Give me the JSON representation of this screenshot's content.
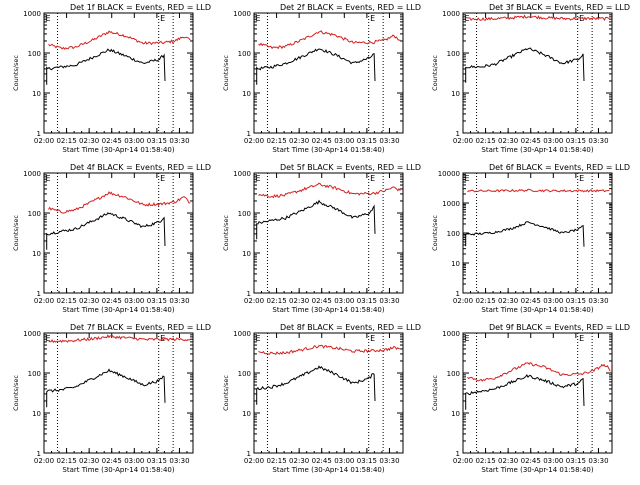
{
  "chart_data": [
    {
      "title": "Det 1f BLACK = Events, RED = LLD",
      "type": "line",
      "ylabel": "Counts/sec",
      "xlabel": "Start Time (30-Apr-14 01:58:40)",
      "yscale": "log",
      "ylim": [
        1,
        1000
      ],
      "x_ticks": [
        "02:00",
        "02:15",
        "02:30",
        "02:45",
        "03:00",
        "03:15",
        "03:30"
      ],
      "y_ticks": [
        "1",
        "10",
        "100",
        "1000"
      ],
      "series": [
        {
          "color": "#d42020",
          "x": [
            2.05,
            2.2,
            2.35,
            2.55,
            2.72,
            2.9,
            3.1,
            3.32,
            3.45,
            3.55,
            3.62
          ],
          "y": [
            160,
            130,
            140,
            215,
            340,
            270,
            175,
            180,
            200,
            260,
            210
          ]
        },
        {
          "color": "#000000",
          "x": [
            2.03,
            2.2,
            2.35,
            2.55,
            2.72,
            2.9,
            3.1,
            3.28,
            3.33,
            3.34
          ],
          "y": [
            40,
            45,
            50,
            80,
            120,
            85,
            55,
            70,
            90,
            20
          ]
        }
      ],
      "markers": {
        "vlines_x": [
          2.15,
          3.27,
          3.43
        ],
        "labels": [
          "E",
          "E"
        ]
      }
    },
    {
      "title": "Det 2f BLACK = Events, RED = LLD",
      "type": "line",
      "ylabel": "Counts/sec",
      "xlabel": "Start Time (30-Apr-14 01:58:40)",
      "yscale": "log",
      "ylim": [
        1,
        1000
      ],
      "x_ticks": [
        "02:00",
        "02:15",
        "02:30",
        "02:45",
        "03:00",
        "03:15",
        "03:30"
      ],
      "y_ticks": [
        "1",
        "10",
        "100",
        "1000"
      ],
      "series": [
        {
          "color": "#d42020",
          "x": [
            2.05,
            2.2,
            2.35,
            2.55,
            2.72,
            2.9,
            3.1,
            3.32,
            3.45,
            3.55,
            3.62
          ],
          "y": [
            170,
            135,
            145,
            220,
            345,
            280,
            180,
            185,
            210,
            270,
            210
          ]
        },
        {
          "color": "#000000",
          "x": [
            2.03,
            2.2,
            2.35,
            2.55,
            2.72,
            2.9,
            3.1,
            3.28,
            3.33,
            3.34
          ],
          "y": [
            40,
            45,
            55,
            85,
            130,
            90,
            55,
            75,
            95,
            20
          ]
        }
      ],
      "markers": {
        "vlines_x": [
          2.15,
          3.27,
          3.43
        ],
        "labels": [
          "E",
          "E"
        ]
      }
    },
    {
      "title": "Det 3f BLACK = Events, RED = LLD",
      "type": "line",
      "ylabel": "Counts/sec",
      "xlabel": "Start Time (30-Apr-14 01:58:40)",
      "yscale": "log",
      "ylim": [
        1,
        1000
      ],
      "x_ticks": [
        "02:00",
        "02:15",
        "02:30",
        "02:45",
        "03:00",
        "03:15",
        "03:30"
      ],
      "y_ticks": [
        "1",
        "10",
        "100",
        "1000"
      ],
      "series": [
        {
          "color": "#d42020",
          "x": [
            2.05,
            2.3,
            2.55,
            2.72,
            2.9,
            3.15,
            3.35,
            3.62
          ],
          "y": [
            700,
            710,
            760,
            820,
            760,
            720,
            730,
            720
          ]
        },
        {
          "color": "#000000",
          "x": [
            2.03,
            2.2,
            2.35,
            2.55,
            2.72,
            2.9,
            3.1,
            3.28,
            3.33,
            3.34
          ],
          "y": [
            45,
            45,
            52,
            85,
            130,
            90,
            55,
            70,
            90,
            20
          ]
        }
      ],
      "markers": {
        "vlines_x": [
          2.15,
          3.27,
          3.43
        ],
        "labels": [
          "E",
          "E"
        ]
      }
    },
    {
      "title": "Det 4f BLACK = Events, RED = LLD",
      "type": "line",
      "ylabel": "Counts/sec",
      "xlabel": "Start Time (30-Apr-14 01:58:40)",
      "yscale": "log",
      "ylim": [
        1,
        1000
      ],
      "x_ticks": [
        "02:00",
        "02:15",
        "02:30",
        "02:45",
        "03:00",
        "03:15",
        "03:30"
      ],
      "y_ticks": [
        "1",
        "10",
        "100",
        "1000"
      ],
      "series": [
        {
          "color": "#d42020",
          "x": [
            2.05,
            2.2,
            2.35,
            2.55,
            2.72,
            2.9,
            3.1,
            3.32,
            3.45,
            3.55,
            3.62
          ],
          "y": [
            130,
            105,
            120,
            200,
            320,
            250,
            160,
            170,
            190,
            250,
            180
          ]
        },
        {
          "color": "#000000",
          "x": [
            2.03,
            2.2,
            2.35,
            2.55,
            2.72,
            2.9,
            3.1,
            3.28,
            3.33,
            3.34
          ],
          "y": [
            30,
            35,
            40,
            65,
            100,
            70,
            45,
            60,
            80,
            15
          ]
        }
      ],
      "markers": {
        "vlines_x": [
          2.15,
          3.27,
          3.43
        ],
        "labels": [
          "E",
          "E"
        ]
      }
    },
    {
      "title": "Det 5f BLACK = Events, RED = LLD",
      "type": "line",
      "ylabel": "Counts/sec",
      "xlabel": "Start Time (30-Apr-14 01:58:40)",
      "yscale": "log",
      "ylim": [
        1,
        1000
      ],
      "x_ticks": [
        "02:00",
        "02:15",
        "02:30",
        "02:45",
        "03:00",
        "03:15",
        "03:30"
      ],
      "y_ticks": [
        "1",
        "10",
        "100",
        "1000"
      ],
      "series": [
        {
          "color": "#d42020",
          "x": [
            2.05,
            2.2,
            2.35,
            2.55,
            2.72,
            2.9,
            3.1,
            3.32,
            3.45,
            3.55,
            3.62
          ],
          "y": [
            290,
            260,
            280,
            390,
            520,
            420,
            300,
            310,
            360,
            440,
            360
          ]
        },
        {
          "color": "#000000",
          "x": [
            2.03,
            2.2,
            2.35,
            2.55,
            2.72,
            2.9,
            3.1,
            3.28,
            3.33,
            3.34
          ],
          "y": [
            55,
            65,
            75,
            120,
            190,
            130,
            75,
            100,
            140,
            30
          ]
        }
      ],
      "markers": {
        "vlines_x": [
          2.15,
          3.27,
          3.43
        ],
        "labels": [
          "E",
          "E"
        ]
      }
    },
    {
      "title": "Det 6f BLACK = Events, RED = LLD",
      "type": "line",
      "ylabel": "Counts/sec",
      "xlabel": "Start Time (30-Apr-14 01:58:40)",
      "yscale": "log",
      "ylim": [
        1,
        10000
      ],
      "x_ticks": [
        "02:00",
        "02:15",
        "02:30",
        "02:45",
        "03:00",
        "03:15",
        "03:30"
      ],
      "y_ticks": [
        "1",
        "10",
        "100",
        "1000",
        "10000"
      ],
      "series": [
        {
          "color": "#d42020",
          "x": [
            2.05,
            2.4,
            2.72,
            3.0,
            3.35,
            3.62
          ],
          "y": [
            2500,
            2550,
            2650,
            2550,
            2550,
            2550
          ]
        },
        {
          "color": "#000000",
          "x": [
            2.03,
            2.2,
            2.35,
            2.55,
            2.72,
            2.9,
            3.1,
            3.28,
            3.33,
            3.34
          ],
          "y": [
            90,
            95,
            105,
            145,
            230,
            160,
            100,
            130,
            170,
            35
          ]
        }
      ],
      "markers": {
        "vlines_x": [
          2.15,
          3.27,
          3.43
        ],
        "labels": [
          "E",
          "E"
        ]
      }
    },
    {
      "title": "Det 7f BLACK = Events, RED = LLD",
      "type": "line",
      "ylabel": "Counts/sec",
      "xlabel": "Start Time (30-Apr-14 01:58:40)",
      "yscale": "log",
      "ylim": [
        1,
        1000
      ],
      "x_ticks": [
        "02:00",
        "02:15",
        "02:30",
        "02:45",
        "03:00",
        "03:15",
        "03:30"
      ],
      "y_ticks": [
        "1",
        "10",
        "100",
        "1000"
      ],
      "series": [
        {
          "color": "#d42020",
          "x": [
            2.05,
            2.3,
            2.55,
            2.72,
            2.9,
            3.15,
            3.35,
            3.62
          ],
          "y": [
            620,
            640,
            720,
            820,
            760,
            680,
            700,
            690
          ]
        },
        {
          "color": "#000000",
          "x": [
            2.03,
            2.2,
            2.35,
            2.55,
            2.72,
            2.9,
            3.1,
            3.28,
            3.33,
            3.34
          ],
          "y": [
            35,
            38,
            45,
            75,
            115,
            80,
            50,
            65,
            85,
            18
          ]
        }
      ],
      "markers": {
        "vlines_x": [
          2.15,
          3.27,
          3.43
        ],
        "labels": [
          "E",
          "E"
        ]
      }
    },
    {
      "title": "Det 8f BLACK = Events, RED = LLD",
      "type": "line",
      "ylabel": "Counts/sec",
      "xlabel": "Start Time (30-Apr-14 01:58:40)",
      "yscale": "log",
      "ylim": [
        1,
        1000
      ],
      "x_ticks": [
        "02:00",
        "02:15",
        "02:30",
        "02:45",
        "03:00",
        "03:15",
        "03:30"
      ],
      "y_ticks": [
        "1",
        "10",
        "100",
        "1000"
      ],
      "series": [
        {
          "color": "#d42020",
          "x": [
            2.05,
            2.2,
            2.35,
            2.55,
            2.72,
            2.9,
            3.1,
            3.32,
            3.45,
            3.55,
            3.62
          ],
          "y": [
            340,
            310,
            320,
            390,
            470,
            420,
            350,
            360,
            380,
            430,
            400
          ]
        },
        {
          "color": "#000000",
          "x": [
            2.03,
            2.2,
            2.35,
            2.55,
            2.72,
            2.9,
            3.1,
            3.28,
            3.33,
            3.34
          ],
          "y": [
            40,
            45,
            55,
            90,
            140,
            95,
            55,
            75,
            100,
            20
          ]
        }
      ],
      "markers": {
        "vlines_x": [
          2.15,
          3.27,
          3.43
        ],
        "labels": [
          "E",
          "E"
        ]
      }
    },
    {
      "title": "Det 9f BLACK = Events, RED = LLD",
      "type": "line",
      "ylabel": "Counts/sec",
      "xlabel": "Start Time (30-Apr-14 01:58:40)",
      "yscale": "log",
      "ylim": [
        1,
        1000
      ],
      "x_ticks": [
        "02:00",
        "02:15",
        "02:30",
        "02:45",
        "03:00",
        "03:15",
        "03:30"
      ],
      "y_ticks": [
        "1",
        "10",
        "100",
        "1000"
      ],
      "series": [
        {
          "color": "#d42020",
          "x": [
            2.05,
            2.2,
            2.35,
            2.55,
            2.72,
            2.9,
            3.1,
            3.32,
            3.45,
            3.55,
            3.6,
            3.63
          ],
          "y": [
            80,
            65,
            75,
            120,
            175,
            140,
            90,
            95,
            115,
            160,
            140,
            110
          ]
        },
        {
          "color": "#000000",
          "x": [
            2.03,
            2.2,
            2.35,
            2.55,
            2.72,
            2.9,
            3.1,
            3.28,
            3.33,
            3.34
          ],
          "y": [
            30,
            35,
            40,
            60,
            85,
            65,
            45,
            55,
            70,
            15
          ]
        }
      ],
      "markers": {
        "vlines_x": [
          2.15,
          3.27,
          3.43
        ],
        "labels": [
          "E",
          "E"
        ]
      }
    }
  ]
}
